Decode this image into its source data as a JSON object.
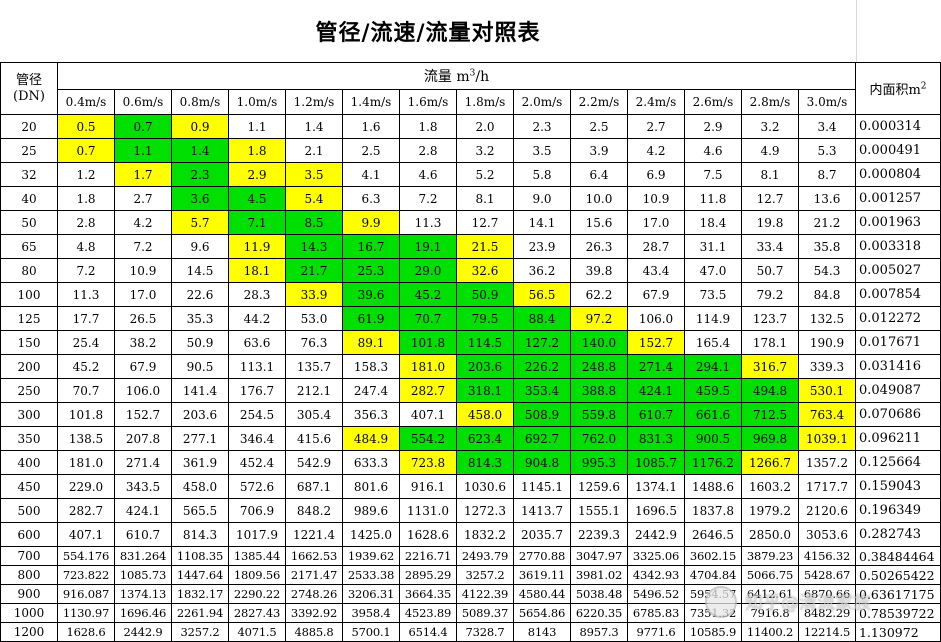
{
  "title": "管径/流速/流量对照表",
  "header": {
    "dn_label": "管径",
    "dn_unit": "(DN)",
    "flow_label": "流量 m",
    "flow_exp": "3",
    "flow_tail": "/h",
    "area_label": "内面积m",
    "area_exp": "2",
    "speeds": [
      "0.4m/s",
      "0.6m/s",
      "0.8m/s",
      "1.0m/s",
      "1.2m/s",
      "1.4m/s",
      "1.6m/s",
      "1.8m/s",
      "2.0m/s",
      "2.2m/s",
      "2.4m/s",
      "2.6m/s",
      "2.8m/s",
      "3.0m/s"
    ]
  },
  "colors": {
    "yellow": "#ffff00",
    "green": "#00e000"
  },
  "rows": [
    {
      "dn": "20",
      "area": "0.000314",
      "v": [
        "0.5",
        "0.7",
        "0.9",
        "1.1",
        "1.4",
        "1.6",
        "1.8",
        "2.0",
        "2.3",
        "2.5",
        "2.7",
        "2.9",
        "3.2",
        "3.4"
      ],
      "c": "ygy..........."
    },
    {
      "dn": "25",
      "area": "0.000491",
      "v": [
        "0.7",
        "1.1",
        "1.4",
        "1.8",
        "2.1",
        "2.5",
        "2.8",
        "3.2",
        "3.5",
        "3.9",
        "4.2",
        "4.6",
        "4.9",
        "5.3"
      ],
      "c": "yggy.........."
    },
    {
      "dn": "32",
      "area": "0.000804",
      "v": [
        "1.2",
        "1.7",
        "2.3",
        "2.9",
        "3.5",
        "4.1",
        "4.6",
        "5.2",
        "5.8",
        "6.4",
        "6.9",
        "7.5",
        "8.1",
        "8.7"
      ],
      "c": ".ygyy........."
    },
    {
      "dn": "40",
      "area": "0.001257",
      "v": [
        "1.8",
        "2.7",
        "3.6",
        "4.5",
        "5.4",
        "6.3",
        "7.2",
        "8.1",
        "9.0",
        "10.0",
        "10.9",
        "11.8",
        "12.7",
        "13.6"
      ],
      "c": "..ggy........."
    },
    {
      "dn": "50",
      "area": "0.001963",
      "v": [
        "2.8",
        "4.2",
        "5.7",
        "7.1",
        "8.5",
        "9.9",
        "11.3",
        "12.7",
        "14.1",
        "15.6",
        "17.0",
        "18.4",
        "19.8",
        "21.2"
      ],
      "c": "..yggy........"
    },
    {
      "dn": "65",
      "area": "0.003318",
      "v": [
        "4.8",
        "7.2",
        "9.6",
        "11.9",
        "14.3",
        "16.7",
        "19.1",
        "21.5",
        "23.9",
        "26.3",
        "28.7",
        "31.1",
        "33.4",
        "35.8"
      ],
      "c": "...ygggy......"
    },
    {
      "dn": "80",
      "area": "0.005027",
      "v": [
        "7.2",
        "10.9",
        "14.5",
        "18.1",
        "21.7",
        "25.3",
        "29.0",
        "32.6",
        "36.2",
        "39.8",
        "43.4",
        "47.0",
        "50.7",
        "54.3"
      ],
      "c": "...ygggy......"
    },
    {
      "dn": "100",
      "area": "0.007854",
      "v": [
        "11.3",
        "17.0",
        "22.6",
        "28.3",
        "33.9",
        "39.6",
        "45.2",
        "50.9",
        "56.5",
        "62.2",
        "67.9",
        "73.5",
        "79.2",
        "84.8"
      ],
      "c": "....ygggy....."
    },
    {
      "dn": "125",
      "area": "0.012272",
      "v": [
        "17.7",
        "26.5",
        "35.3",
        "44.2",
        "53.0",
        "61.9",
        "70.7",
        "79.5",
        "88.4",
        "97.2",
        "106.0",
        "114.9",
        "123.7",
        "132.5"
      ],
      "c": ".....ggggy...."
    },
    {
      "dn": "150",
      "area": "0.017671",
      "v": [
        "25.4",
        "38.2",
        "50.9",
        "63.6",
        "76.3",
        "89.1",
        "101.8",
        "114.5",
        "127.2",
        "140.0",
        "152.7",
        "165.4",
        "178.1",
        "190.9"
      ],
      "c": ".....yggggy..."
    },
    {
      "dn": "200",
      "area": "0.031416",
      "v": [
        "45.2",
        "67.9",
        "90.5",
        "113.1",
        "135.7",
        "158.3",
        "181.0",
        "203.6",
        "226.2",
        "248.8",
        "271.4",
        "294.1",
        "316.7",
        "339.3"
      ],
      "c": "......ygggggy."
    },
    {
      "dn": "250",
      "area": "0.049087",
      "v": [
        "70.7",
        "106.0",
        "141.4",
        "176.7",
        "212.1",
        "247.4",
        "282.7",
        "318.1",
        "353.4",
        "388.8",
        "424.1",
        "459.5",
        "494.8",
        "530.1"
      ],
      "c": "......yggggggy"
    },
    {
      "dn": "300",
      "area": "0.070686",
      "v": [
        "101.8",
        "152.7",
        "203.6",
        "254.5",
        "305.4",
        "356.3",
        "407.1",
        "458.0",
        "508.9",
        "559.8",
        "610.7",
        "661.6",
        "712.5",
        "763.4"
      ],
      "c": ".......ygggggy"
    },
    {
      "dn": "350",
      "area": "0.096211",
      "v": [
        "138.5",
        "207.8",
        "277.1",
        "346.4",
        "415.6",
        "484.9",
        "554.2",
        "623.4",
        "692.7",
        "762.0",
        "831.3",
        "900.5",
        "969.8",
        "1039.1"
      ],
      "c": ".....ygggggggy"
    },
    {
      "dn": "400",
      "area": "0.125664",
      "v": [
        "181.0",
        "271.4",
        "361.9",
        "452.4",
        "542.9",
        "633.3",
        "723.8",
        "814.3",
        "904.8",
        "995.3",
        "1085.7",
        "1176.2",
        "1266.7",
        "1357.2"
      ],
      "c": "......ygggggy."
    },
    {
      "dn": "450",
      "area": "0.159043",
      "v": [
        "229.0",
        "343.5",
        "458.0",
        "572.6",
        "687.1",
        "801.6",
        "916.1",
        "1030.6",
        "1145.1",
        "1259.6",
        "1374.1",
        "1488.6",
        "1603.2",
        "1717.7"
      ],
      "c": ".............."
    },
    {
      "dn": "500",
      "area": "0.196349",
      "v": [
        "282.7",
        "424.1",
        "565.5",
        "706.9",
        "848.2",
        "989.6",
        "1131.0",
        "1272.3",
        "1413.7",
        "1555.1",
        "1696.5",
        "1837.8",
        "1979.2",
        "2120.6"
      ],
      "c": ".............."
    },
    {
      "dn": "600",
      "area": "0.282743",
      "v": [
        "407.1",
        "610.7",
        "814.3",
        "1017.9",
        "1221.4",
        "1425.0",
        "1628.6",
        "1832.2",
        "2035.7",
        "2239.3",
        "2442.9",
        "2646.5",
        "2850.0",
        "3053.6"
      ],
      "c": ".............."
    },
    {
      "dn": "700",
      "area": "0.38484464",
      "v": [
        "554.176",
        "831.264",
        "1108.35",
        "1385.44",
        "1662.53",
        "1939.62",
        "2216.71",
        "2493.79",
        "2770.88",
        "3047.97",
        "3325.06",
        "3602.15",
        "3879.23",
        "4156.32"
      ],
      "c": ".............."
    },
    {
      "dn": "800",
      "area": "0.50265422",
      "v": [
        "723.822",
        "1085.73",
        "1447.64",
        "1809.56",
        "2171.47",
        "2533.38",
        "2895.29",
        "3257.2",
        "3619.11",
        "3981.02",
        "4342.93",
        "4704.84",
        "5066.75",
        "5428.67"
      ],
      "c": ".............."
    },
    {
      "dn": "900",
      "area": "0.63617175",
      "v": [
        "916.087",
        "1374.13",
        "1832.17",
        "2290.22",
        "2748.26",
        "3206.31",
        "3664.35",
        "4122.39",
        "4580.44",
        "5038.48",
        "5496.52",
        "5954.57",
        "6412.61",
        "6870.66"
      ],
      "c": ".............."
    },
    {
      "dn": "1000",
      "area": "0.78539722",
      "v": [
        "1130.97",
        "1696.46",
        "2261.94",
        "2827.43",
        "3392.92",
        "3958.4",
        "4523.89",
        "5089.37",
        "5654.86",
        "6220.35",
        "6785.83",
        "7351.32",
        "7916.8",
        "8482.29"
      ],
      "c": ".............."
    },
    {
      "dn": "1200",
      "area": "1.130972",
      "v": [
        "1628.6",
        "2442.9",
        "3257.2",
        "4071.5",
        "4885.8",
        "5700.1",
        "6514.4",
        "7328.7",
        "8143",
        "8957.3",
        "9771.6",
        "10585.9",
        "11400.2",
        "12214.5"
      ],
      "c": ".............."
    }
  ],
  "watermark": {
    "text": "知乎@清流家族",
    "icon": "zhihu-logo-icon"
  }
}
